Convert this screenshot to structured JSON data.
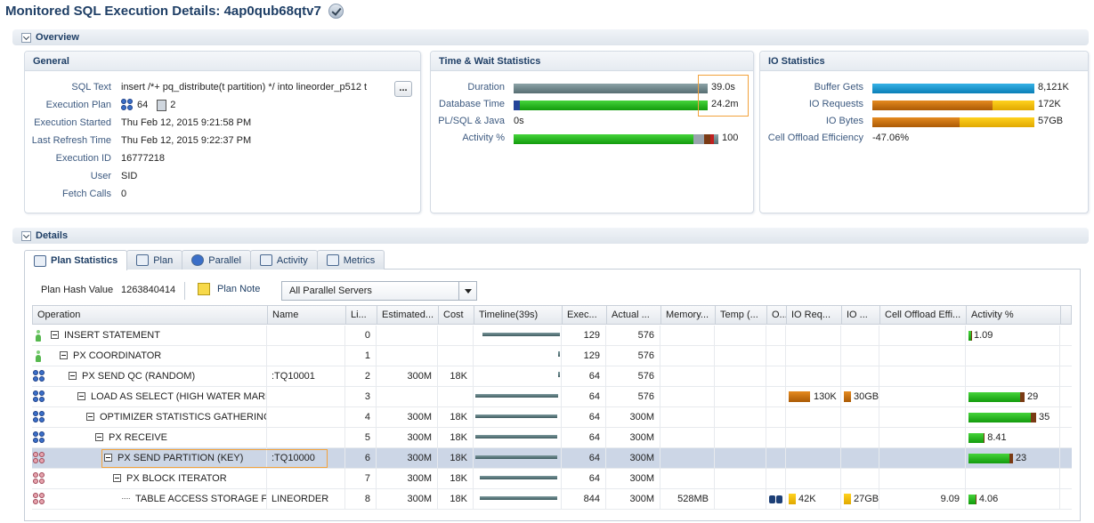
{
  "page_title": "Monitored SQL Execution Details: 4ap0qub68qtv7",
  "overview": {
    "label": "Overview",
    "general": {
      "title": "General",
      "rows": [
        {
          "label": "SQL Text",
          "value": "insert /*+ pq_distribute(t partition) */ into lineorder_p512 t"
        },
        {
          "label": "Execution Plan",
          "value": "",
          "plan_count1": "64",
          "plan_count2": "2"
        },
        {
          "label": "Execution Started",
          "value": "Thu Feb 12, 2015 9:21:58 PM"
        },
        {
          "label": "Last Refresh Time",
          "value": "Thu Feb 12, 2015 9:22:37 PM"
        },
        {
          "label": "Execution ID",
          "value": "16777218"
        },
        {
          "label": "User",
          "value": "SID"
        },
        {
          "label": "Fetch Calls",
          "value": "0"
        }
      ],
      "ellipsis_label": "..."
    },
    "time_wait": {
      "title": "Time & Wait Statistics",
      "rows": [
        {
          "label": "Duration",
          "value": "39.0s",
          "fill": 1.0
        },
        {
          "label": "Database Time",
          "value": "24.2m",
          "fill": 1.0
        },
        {
          "label": "PL/SQL & Java",
          "value": "0s",
          "fill": 0
        },
        {
          "label": "Activity %",
          "value": "100",
          "fill": 1.0
        }
      ]
    },
    "io": {
      "title": "IO Statistics",
      "rows": [
        {
          "label": "Buffer Gets",
          "value": "8,121K"
        },
        {
          "label": "IO Requests",
          "value": "172K"
        },
        {
          "label": "IO Bytes",
          "value": "57GB"
        },
        {
          "label": "Cell Offload Efficiency",
          "value": "-47.06%"
        }
      ]
    }
  },
  "details": {
    "label": "Details",
    "tabs": [
      {
        "label": "Plan Statistics",
        "icon": "table-icon"
      },
      {
        "label": "Plan",
        "icon": "tree-icon"
      },
      {
        "label": "Parallel",
        "icon": "group-icon"
      },
      {
        "label": "Activity",
        "icon": "chart-icon"
      },
      {
        "label": "Metrics",
        "icon": "metrics-icon"
      }
    ],
    "plan_hash_label": "Plan Hash Value",
    "plan_hash_value": "1263840414",
    "plan_note_label": "Plan Note",
    "server_filter": "All Parallel Servers",
    "columns": [
      "Operation",
      "Name",
      "Li...",
      "Estimated...",
      "Cost",
      "Timeline(39s)",
      "Exec...",
      "Actual ...",
      "Memory...",
      "Temp (...",
      "O...",
      "IO Req...",
      "IO ...",
      "Cell Offload Effi...",
      "Activity %"
    ],
    "rows": [
      {
        "operation": "INSERT STATEMENT",
        "name": "",
        "line": "0",
        "estimated": "",
        "cost": "",
        "exec": "129",
        "actual": "576",
        "memory": "",
        "io_req": "",
        "io_bytes": "",
        "cell_offload": "",
        "activity": "1.09",
        "activity_pct": 1.09,
        "tl_start": 0.08,
        "tl_end": 1.0
      },
      {
        "operation": "PX COORDINATOR",
        "name": "",
        "line": "1",
        "estimated": "",
        "cost": "",
        "exec": "129",
        "actual": "576",
        "memory": "",
        "io_req": "",
        "io_bytes": "",
        "cell_offload": "",
        "activity": "",
        "activity_pct": 0,
        "tl_start": 0.98,
        "tl_end": 1.0
      },
      {
        "operation": "PX SEND QC (RANDOM)",
        "name": ":TQ10001",
        "line": "2",
        "estimated": "300M",
        "cost": "18K",
        "exec": "64",
        "actual": "576",
        "memory": "",
        "io_req": "",
        "io_bytes": "",
        "cell_offload": "",
        "activity": "",
        "activity_pct": 0,
        "tl_start": 0.98,
        "tl_end": 1.0
      },
      {
        "operation": "LOAD AS SELECT (HIGH WATER MARK)",
        "name": "",
        "line": "3",
        "estimated": "",
        "cost": "",
        "exec": "64",
        "actual": "576",
        "memory": "",
        "io_req": "130K",
        "io_bytes": "30GB",
        "cell_offload": "",
        "activity": "29",
        "activity_pct": 29,
        "tl_start": 0.0,
        "tl_end": 0.98
      },
      {
        "operation": "OPTIMIZER STATISTICS GATHERING",
        "name": "",
        "line": "4",
        "estimated": "300M",
        "cost": "18K",
        "exec": "64",
        "actual": "300M",
        "memory": "",
        "io_req": "",
        "io_bytes": "",
        "cell_offload": "",
        "activity": "35",
        "activity_pct": 35,
        "tl_start": 0.0,
        "tl_end": 0.97
      },
      {
        "operation": "PX RECEIVE",
        "name": "",
        "line": "5",
        "estimated": "300M",
        "cost": "18K",
        "exec": "64",
        "actual": "300M",
        "memory": "",
        "io_req": "",
        "io_bytes": "",
        "cell_offload": "",
        "activity": "8.41",
        "activity_pct": 8.41,
        "tl_start": 0.0,
        "tl_end": 0.97
      },
      {
        "operation": "PX SEND PARTITION (KEY)",
        "name": ":TQ10000",
        "line": "6",
        "estimated": "300M",
        "cost": "18K",
        "exec": "64",
        "actual": "300M",
        "memory": "",
        "io_req": "",
        "io_bytes": "",
        "cell_offload": "",
        "activity": "23",
        "activity_pct": 23,
        "tl_start": 0.0,
        "tl_end": 0.97
      },
      {
        "operation": "PX BLOCK ITERATOR",
        "name": "",
        "line": "7",
        "estimated": "300M",
        "cost": "18K",
        "exec": "64",
        "actual": "300M",
        "memory": "",
        "io_req": "",
        "io_bytes": "",
        "cell_offload": "",
        "activity": "",
        "activity_pct": 0,
        "tl_start": 0.05,
        "tl_end": 0.97
      },
      {
        "operation": "TABLE ACCESS STORAGE F...",
        "name": "LINEORDER",
        "line": "8",
        "estimated": "300M",
        "cost": "18K",
        "exec": "844",
        "actual": "300M",
        "memory": "528MB",
        "io_req": "42K",
        "io_bytes": "27GB",
        "cell_offload": "9.09",
        "activity": "4.06",
        "activity_pct": 4.06,
        "tl_start": 0.05,
        "tl_end": 0.97
      }
    ],
    "selected_row": 6
  }
}
